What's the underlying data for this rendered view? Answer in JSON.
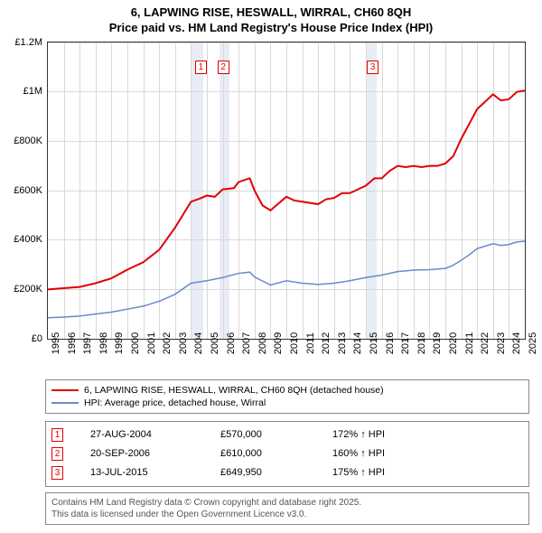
{
  "title": {
    "line1": "6, LAPWING RISE, HESWALL, WIRRAL, CH60 8QH",
    "line2": "Price paid vs. HM Land Registry's House Price Index (HPI)"
  },
  "chart": {
    "type": "line",
    "ylim": [
      0,
      1200000
    ],
    "ytick_step": 200000,
    "y_labels": [
      "£0",
      "£200K",
      "£400K",
      "£600K",
      "£800K",
      "£1M",
      "£1.2M"
    ],
    "xlim": [
      1995,
      2025
    ],
    "x_labels": [
      "1995",
      "1996",
      "1997",
      "1998",
      "1999",
      "2000",
      "2001",
      "2002",
      "2003",
      "2004",
      "2005",
      "2006",
      "2007",
      "2008",
      "2009",
      "2010",
      "2011",
      "2012",
      "2013",
      "2014",
      "2015",
      "2016",
      "2017",
      "2018",
      "2019",
      "2020",
      "2021",
      "2022",
      "2023",
      "2024",
      "2025"
    ],
    "background": "#ffffff",
    "grid_color": "#d9d9d9",
    "shade_color": "#e8edf5",
    "shaded_years": [
      [
        2004,
        2004.8
      ],
      [
        2005.8,
        2006.4
      ],
      [
        2015,
        2015.7
      ]
    ],
    "series": [
      {
        "name": "6, LAPWING RISE, HESWALL, WIRRAL, CH60 8QH (detached house)",
        "color": "#e20000",
        "width": 2,
        "points": [
          [
            1995,
            200000
          ],
          [
            1996,
            205000
          ],
          [
            1997,
            210000
          ],
          [
            1998,
            225000
          ],
          [
            1999,
            245000
          ],
          [
            2000,
            280000
          ],
          [
            2001,
            310000
          ],
          [
            2002,
            360000
          ],
          [
            2003,
            450000
          ],
          [
            2004,
            555000
          ],
          [
            2004.65,
            570000
          ],
          [
            2005,
            580000
          ],
          [
            2005.5,
            575000
          ],
          [
            2006,
            605000
          ],
          [
            2006.7,
            610000
          ],
          [
            2007,
            635000
          ],
          [
            2007.7,
            650000
          ],
          [
            2008,
            600000
          ],
          [
            2008.5,
            540000
          ],
          [
            2009,
            520000
          ],
          [
            2010,
            575000
          ],
          [
            2010.5,
            560000
          ],
          [
            2011,
            555000
          ],
          [
            2012,
            545000
          ],
          [
            2012.5,
            565000
          ],
          [
            2013,
            570000
          ],
          [
            2013.5,
            590000
          ],
          [
            2014,
            590000
          ],
          [
            2014.5,
            605000
          ],
          [
            2015,
            620000
          ],
          [
            2015.54,
            649950
          ],
          [
            2016,
            650000
          ],
          [
            2016.5,
            680000
          ],
          [
            2017,
            700000
          ],
          [
            2017.5,
            695000
          ],
          [
            2018,
            700000
          ],
          [
            2018.5,
            695000
          ],
          [
            2019,
            700000
          ],
          [
            2019.5,
            700000
          ],
          [
            2020,
            710000
          ],
          [
            2020.5,
            740000
          ],
          [
            2021,
            810000
          ],
          [
            2021.5,
            870000
          ],
          [
            2022,
            930000
          ],
          [
            2022.5,
            960000
          ],
          [
            2023,
            990000
          ],
          [
            2023.5,
            965000
          ],
          [
            2024,
            970000
          ],
          [
            2024.5,
            1000000
          ],
          [
            2025,
            1005000
          ]
        ]
      },
      {
        "name": "HPI: Average price, detached house, Wirral",
        "color": "#6a8bc9",
        "width": 1.5,
        "points": [
          [
            1995,
            85000
          ],
          [
            1996,
            88000
          ],
          [
            1997,
            92000
          ],
          [
            1998,
            100000
          ],
          [
            1999,
            108000
          ],
          [
            2000,
            120000
          ],
          [
            2001,
            132000
          ],
          [
            2002,
            152000
          ],
          [
            2003,
            180000
          ],
          [
            2004,
            225000
          ],
          [
            2005,
            235000
          ],
          [
            2006,
            248000
          ],
          [
            2007,
            265000
          ],
          [
            2007.7,
            270000
          ],
          [
            2008,
            250000
          ],
          [
            2009,
            218000
          ],
          [
            2010,
            235000
          ],
          [
            2011,
            225000
          ],
          [
            2012,
            220000
          ],
          [
            2013,
            225000
          ],
          [
            2014,
            235000
          ],
          [
            2015,
            248000
          ],
          [
            2016,
            258000
          ],
          [
            2017,
            272000
          ],
          [
            2018,
            278000
          ],
          [
            2019,
            280000
          ],
          [
            2020,
            285000
          ],
          [
            2020.5,
            298000
          ],
          [
            2021,
            318000
          ],
          [
            2021.5,
            340000
          ],
          [
            2022,
            365000
          ],
          [
            2022.5,
            375000
          ],
          [
            2023,
            385000
          ],
          [
            2023.5,
            378000
          ],
          [
            2024,
            382000
          ],
          [
            2024.5,
            392000
          ],
          [
            2025,
            395000
          ]
        ]
      }
    ],
    "markers": [
      {
        "idx": "1",
        "year": 2004.6,
        "y_top": 20
      },
      {
        "idx": "2",
        "year": 2006.0,
        "y_top": 20
      },
      {
        "idx": "3",
        "year": 2015.4,
        "y_top": 20
      }
    ]
  },
  "legend": {
    "s1": "6, LAPWING RISE, HESWALL, WIRRAL, CH60 8QH (detached house)",
    "s2": "HPI: Average price, detached house, Wirral",
    "c1": "#e20000",
    "c2": "#6a8bc9"
  },
  "sales": [
    {
      "idx": "1",
      "date": "27-AUG-2004",
      "price": "£570,000",
      "hpi": "172% ↑ HPI"
    },
    {
      "idx": "2",
      "date": "20-SEP-2006",
      "price": "£610,000",
      "hpi": "160% ↑ HPI"
    },
    {
      "idx": "3",
      "date": "13-JUL-2015",
      "price": "£649,950",
      "hpi": "175% ↑ HPI"
    }
  ],
  "license": {
    "l1": "Contains HM Land Registry data © Crown copyright and database right 2025.",
    "l2": "This data is licensed under the Open Government Licence v3.0."
  }
}
